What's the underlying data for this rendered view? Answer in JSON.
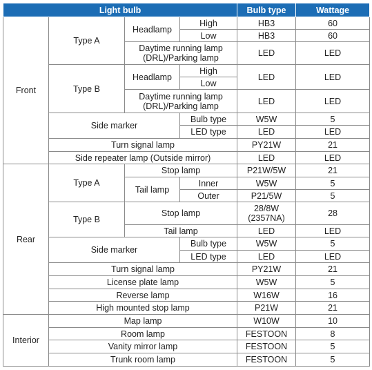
{
  "table": {
    "header": [
      "Light bulb",
      "Bulb type",
      "Wattage"
    ],
    "rows": [
      [
        "Front",
        "Type A",
        "Headlamp",
        "High",
        "HB3",
        60
      ],
      [
        "Low",
        "HB3",
        60
      ],
      [
        [
          "Daytime running lamp",
          "(DRL)/Parking lamp"
        ],
        "LED",
        "LED"
      ],
      [
        "Type B",
        "Headlamp",
        "High",
        "LED",
        "LED"
      ],
      [
        "Low"
      ],
      [
        [
          "Daytime running lamp",
          "(DRL)/Parking lamp"
        ],
        "LED",
        "LED"
      ],
      [
        "Side marker",
        "Bulb type",
        "W5W",
        5
      ],
      [
        "LED type",
        "LED",
        "LED"
      ],
      [
        "Turn signal lamp",
        "PY21W",
        21
      ],
      [
        "Side repeater lamp (Outside mirror)",
        "LED",
        "LED"
      ],
      [
        "Rear",
        "Type A",
        "Stop lamp",
        "P21W/5W",
        21
      ],
      [
        "Tail lamp",
        "Inner",
        "W5W",
        5
      ],
      [
        "Outer",
        "P21/5W",
        5
      ],
      [
        "Type B",
        "Stop lamp",
        [
          "28/8W",
          "(2357NA)"
        ],
        28
      ],
      [
        "Tail lamp",
        "LED",
        "LED"
      ],
      [
        "Side marker",
        "Bulb type",
        "W5W",
        5
      ],
      [
        "LED type",
        "LED",
        "LED"
      ],
      [
        "Turn signal lamp",
        "PY21W",
        21
      ],
      [
        "License plate lamp",
        "W5W",
        5
      ],
      [
        "Reverse lamp",
        "W16W",
        16
      ],
      [
        "High mounted stop lamp",
        "P21W",
        21
      ],
      [
        "Interior",
        "Map lamp",
        "W10W",
        10
      ],
      [
        "Room lamp",
        "FESTOON",
        8
      ],
      [
        "Vanity mirror lamp",
        "FESTOON",
        5
      ],
      [
        "Trunk room lamp",
        "FESTOON",
        5
      ]
    ]
  }
}
